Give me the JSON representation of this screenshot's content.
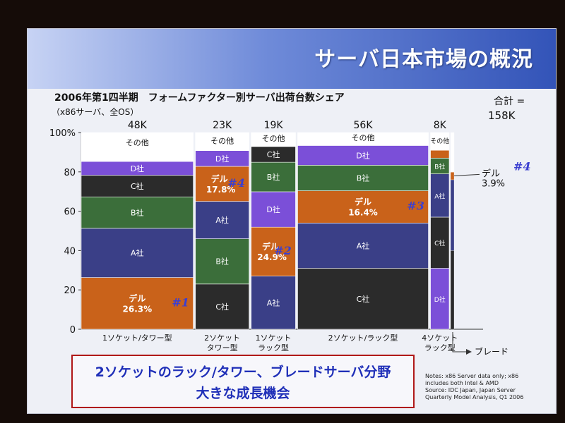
{
  "slide": {
    "title": "サーバ日本市場の概況",
    "chart_title": "2006年第1四半期　フォームファクター別サーバ出荷台数シェア",
    "chart_subtitle": "（x86サーバ、全OS）",
    "total_label": "合計 =",
    "total_value": "158K",
    "message_line1": "2ソケットのラック/タワー、ブレードサーバ分野",
    "message_line2": "大きな成長機会",
    "notes": [
      "Notes: x86 Server data only; x86",
      "includes both Intel & AMD",
      "Source: IDC Japan, Japan Server",
      "Quarterly Model Analysis, Q1 2006"
    ]
  },
  "colors": {
    "その他": "#ffffff",
    "D社": "#7b4fd8",
    "C社": "#2b2b2b",
    "B社": "#3b6e3a",
    "A社": "#3a3f87",
    "デル": "#c9621a",
    "marker": "#3b3fd0"
  },
  "chart_data": {
    "type": "marimekko",
    "ylim": [
      0,
      100
    ],
    "y_ticks": [
      "0",
      "20",
      "40",
      "60",
      "80",
      "100%"
    ],
    "y_tick_values": [
      0,
      20,
      40,
      60,
      80,
      100
    ],
    "columns": [
      {
        "category": "1ソケット/タワー型",
        "size": "48K",
        "width_k": 48,
        "segments": [
          {
            "name": "デル",
            "label": "デル",
            "value_label": "26.3%",
            "value": 26.3,
            "marker": "#1"
          },
          {
            "name": "A社",
            "label": "A社",
            "value": 25
          },
          {
            "name": "B社",
            "label": "B社",
            "value": 16
          },
          {
            "name": "C社",
            "label": "C社",
            "value": 11
          },
          {
            "name": "D社",
            "label": "D社",
            "value": 7
          },
          {
            "name": "その他",
            "label": "その他",
            "value": 14.7
          }
        ]
      },
      {
        "category": "2ソケット\nタワー型",
        "size": "23K",
        "width_k": 23,
        "segments": [
          {
            "name": "C社",
            "label": "C社",
            "value": 23
          },
          {
            "name": "B社",
            "label": "B社",
            "value": 23
          },
          {
            "name": "A社",
            "label": "A社",
            "value": 19
          },
          {
            "name": "デル",
            "label": "デル",
            "value_label": "17.8%",
            "value": 17.8,
            "marker": "#4"
          },
          {
            "name": "D社",
            "label": "D社",
            "value": 8
          },
          {
            "name": "その他",
            "label": "その他",
            "value": 9.2
          }
        ]
      },
      {
        "category": "1ソケット\nラック型",
        "size": "19K",
        "width_k": 19,
        "segments": [
          {
            "name": "A社",
            "label": "A社",
            "value": 27
          },
          {
            "name": "デル",
            "label": "デル",
            "value_label": "24.9%",
            "value": 24.9,
            "marker": "#2"
          },
          {
            "name": "D社",
            "label": "D社",
            "value": 18
          },
          {
            "name": "B社",
            "label": "B社",
            "value": 15
          },
          {
            "name": "C社",
            "label": "C社",
            "value": 8
          },
          {
            "name": "その他",
            "label": "その他",
            "value": 7.1
          }
        ]
      },
      {
        "category": "2ソケット/ラック型",
        "size": "56K",
        "width_k": 56,
        "segments": [
          {
            "name": "C社",
            "label": "C社",
            "value": 31
          },
          {
            "name": "A社",
            "label": "A社",
            "value": 23
          },
          {
            "name": "デル",
            "label": "デル",
            "value_label": "16.4%",
            "value": 16.4,
            "marker": "#3"
          },
          {
            "name": "B社",
            "label": "B社",
            "value": 13
          },
          {
            "name": "D社",
            "label": "D社",
            "value": 10
          },
          {
            "name": "その他",
            "label": "その他",
            "value": 6.6
          }
        ]
      },
      {
        "category": "4ソケット\nラック型",
        "size": "8K",
        "width_k": 8,
        "segments": [
          {
            "name": "D社",
            "label": "D社",
            "value": 31
          },
          {
            "name": "C社",
            "label": "C社",
            "value": 26
          },
          {
            "name": "A社",
            "label": "A社",
            "value": 22
          },
          {
            "name": "B社",
            "label": "B社",
            "value": 8
          },
          {
            "name": "デル",
            "label": "",
            "value": 4
          },
          {
            "name": "その他",
            "label": "その他",
            "value": 9
          }
        ]
      }
    ],
    "blade": {
      "label": "ブレード",
      "dell_label": "デル",
      "dell_value_label": "3.9%",
      "marker": "#4",
      "value": 3.9,
      "segments": [
        {
          "name": "C社",
          "value": 40
        },
        {
          "name": "A社",
          "value": 36
        },
        {
          "name": "デル",
          "value": 3.9
        },
        {
          "name": "その他",
          "value": 20.1
        }
      ]
    }
  }
}
